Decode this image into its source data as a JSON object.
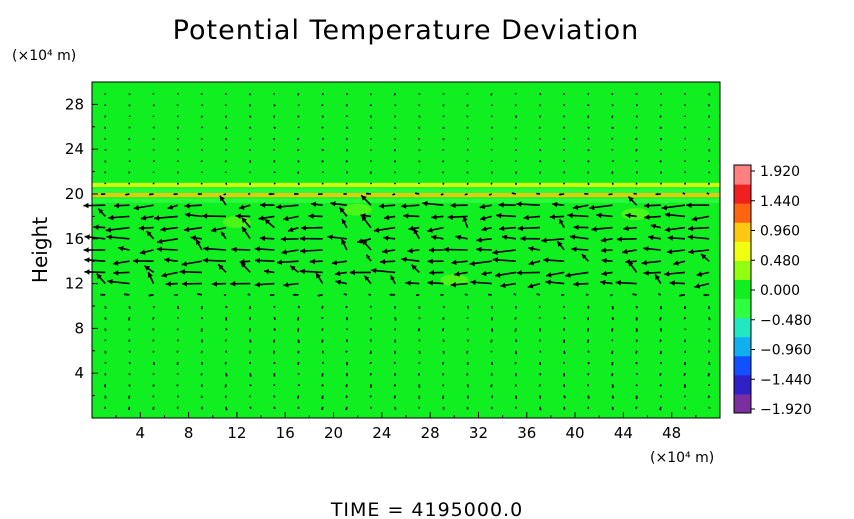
{
  "chart_data": {
    "type": "heatmap",
    "title": "Potential Temperature Deviation",
    "ylabel": "Height",
    "xlabel": "",
    "x_unit_label": "(×10⁴ m)",
    "y_unit_label": "(×10⁴ m)",
    "xlim": [
      0,
      52
    ],
    "ylim": [
      0,
      30
    ],
    "x_ticks": [
      4,
      8,
      12,
      16,
      20,
      24,
      28,
      32,
      36,
      40,
      44,
      48
    ],
    "y_ticks": [
      4,
      8,
      12,
      16,
      20,
      24,
      28
    ],
    "x_tick_labels": [
      "4",
      "8",
      "12",
      "16",
      "20",
      "24",
      "28",
      "32",
      "36",
      "40",
      "44",
      "48"
    ],
    "y_tick_labels": [
      "4",
      "8",
      "12",
      "16",
      "20",
      "24",
      "28"
    ],
    "background_value": 0.0,
    "bands": [
      {
        "y": 20.8,
        "value": 0.55
      },
      {
        "y": 20.3,
        "value": -0.35
      },
      {
        "y": 19.9,
        "value": 0.9
      },
      {
        "y": 19.4,
        "value": -0.4
      }
    ],
    "vector_field": {
      "rows_y": [
        1,
        2,
        3,
        4,
        5,
        6,
        7,
        8,
        9,
        10,
        11,
        12,
        13,
        14,
        15,
        16,
        17,
        18,
        19,
        20,
        21,
        22,
        23,
        24,
        25,
        26,
        27,
        28,
        29
      ],
      "cols_x": [
        1.1,
        3.1,
        5.1,
        7.1,
        9.1,
        11.1,
        13.1,
        15.1,
        17.1,
        19.1,
        21.1,
        23.1,
        25.1,
        27.1,
        29.1,
        31.1,
        33.1,
        35.1,
        37.1,
        39.1,
        41.1,
        43.1,
        45.1,
        47.1,
        49.1,
        51.1
      ],
      "strong_layers_y": [
        12.5,
        13.0,
        14.0,
        15.0,
        16.0,
        17.0,
        18.0,
        19.0
      ],
      "prevailing_direction": "west"
    },
    "colorbar": {
      "ticks": [
        "1.920",
        "1.440",
        "0.960",
        "0.480",
        "0.000",
        "−0.480",
        "−0.960",
        "−1.440",
        "−1.920"
      ],
      "range": [
        -1.92,
        1.92
      ],
      "colors": [
        "#7a2ea0",
        "#3020c8",
        "#1050ff",
        "#10b0f0",
        "#20e8c0",
        "#30ff40",
        "#10f020",
        "#90ff10",
        "#f0ff10",
        "#ffc810",
        "#ff6410",
        "#f02020",
        "#ff8080"
      ]
    }
  },
  "footer": {
    "time_label": "TIME  =  4195000.0"
  }
}
